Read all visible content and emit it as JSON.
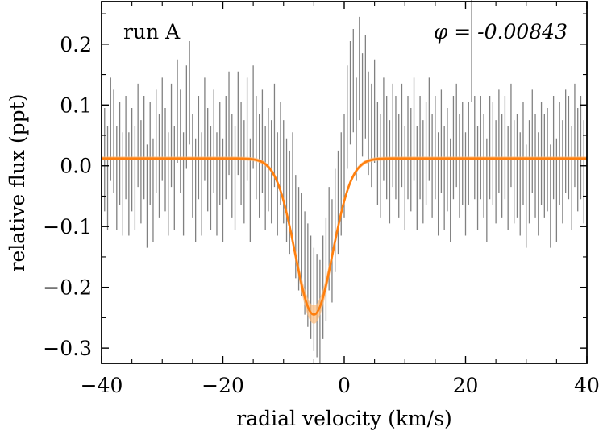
{
  "chart_data": {
    "type": "line",
    "title": "",
    "xlabel": "radial velocity (km/s)",
    "ylabel": "relative flux (ppt)",
    "xlim": [
      -40,
      40
    ],
    "ylim": [
      -0.325,
      0.27
    ],
    "x_ticks": [
      -40,
      -20,
      0,
      20,
      40
    ],
    "x_tick_labels": [
      "−40",
      "−20",
      "0",
      "20",
      "40"
    ],
    "y_ticks": [
      -0.3,
      -0.2,
      -0.1,
      0.0,
      0.1,
      0.2
    ],
    "y_tick_labels": [
      "−0.3",
      "−0.2",
      "−0.1",
      "0.0",
      "0.1",
      "0.2"
    ],
    "annotations": {
      "run_label": "run A",
      "phase_label": "φ = -0.00843"
    },
    "colors": {
      "data": "#808080",
      "model": "#ff7f0e",
      "band": "#ffbb78",
      "frame": "#000000"
    },
    "model": {
      "name": "gaussian fit",
      "baseline": 0.012,
      "amplitude": -0.257,
      "center": -5.0,
      "sigma": 3.1
    },
    "series": [
      {
        "name": "observed residual flux",
        "x": [
          -40,
          -39.5,
          -39,
          -38.5,
          -38,
          -37.5,
          -37,
          -36.5,
          -36,
          -35.5,
          -35,
          -34.5,
          -34,
          -33.5,
          -33,
          -32.5,
          -32,
          -31.5,
          -31,
          -30.5,
          -30,
          -29.5,
          -29,
          -28.5,
          -28,
          -27.5,
          -27,
          -26.5,
          -26,
          -25.5,
          -25,
          -24.5,
          -24,
          -23.5,
          -23,
          -22.5,
          -22,
          -21.5,
          -21,
          -20.5,
          -20,
          -19.5,
          -19,
          -18.5,
          -18,
          -17.5,
          -17,
          -16.5,
          -16,
          -15.5,
          -15,
          -14.5,
          -14,
          -13.5,
          -13,
          -12.5,
          -12,
          -11.5,
          -11,
          -10.5,
          -10,
          -9.5,
          -9,
          -8.5,
          -8,
          -7.5,
          -7,
          -6.5,
          -6,
          -5.5,
          -5,
          -4.5,
          -4,
          -3.5,
          -3,
          -2.5,
          -2,
          -1.5,
          -1,
          -0.5,
          0,
          0.5,
          1,
          1.5,
          2,
          2.5,
          3,
          3.5,
          4,
          4.5,
          5,
          5.5,
          6,
          6.5,
          7,
          7.5,
          8,
          8.5,
          9,
          9.5,
          10,
          10.5,
          11,
          11.5,
          12,
          12.5,
          13,
          13.5,
          14,
          14.5,
          15,
          15.5,
          16,
          16.5,
          17,
          17.5,
          18,
          18.5,
          19,
          19.5,
          20,
          20.5,
          21,
          21.5,
          22,
          22.5,
          23,
          23.5,
          24,
          24.5,
          25,
          25.5,
          26,
          26.5,
          27,
          27.5,
          28,
          28.5,
          29,
          29.5,
          30,
          30.5,
          31,
          31.5,
          32,
          32.5,
          33,
          33.5,
          34,
          34.5,
          35,
          35.5,
          36,
          36.5,
          37,
          37.5,
          38,
          38.5,
          39,
          39.5
        ],
        "y": [
          0.03,
          0.01,
          -0.02,
          0.06,
          0.04,
          -0.02,
          0.02,
          -0.03,
          0.03,
          -0.03,
          0.01,
          -0.02,
          0.05,
          -0.01,
          0.03,
          -0.05,
          0.02,
          -0.04,
          0.04,
          0.0,
          0.06,
          0.01,
          -0.03,
          0.05,
          -0.02,
          0.09,
          0.04,
          -0.03,
          0.08,
          0.12,
          0.0,
          -0.04,
          0.03,
          -0.03,
          0.06,
          0.01,
          -0.02,
          0.04,
          -0.03,
          0.02,
          -0.04,
          0.03,
          0.07,
          0.0,
          -0.02,
          0.07,
          0.02,
          -0.01,
          0.06,
          -0.04,
          0.08,
          0.03,
          0.0,
          0.04,
          -0.02,
          0.01,
          -0.01,
          0.05,
          -0.03,
          0.02,
          -0.01,
          -0.04,
          -0.06,
          -0.03,
          -0.1,
          -0.12,
          -0.13,
          -0.16,
          -0.18,
          -0.2,
          -0.22,
          -0.23,
          -0.24,
          -0.2,
          -0.17,
          -0.12,
          -0.14,
          -0.09,
          -0.06,
          -0.03,
          0.0,
          0.08,
          0.12,
          0.14,
          0.06,
          0.16,
          0.1,
          0.13,
          0.07,
          0.05,
          0.09,
          0.02,
          0.0,
          0.06,
          0.03,
          -0.01,
          0.05,
          0.03,
          0.0,
          0.05,
          -0.02,
          0.03,
          0.01,
          0.06,
          -0.02,
          0.03,
          -0.01,
          0.02,
          0.06,
          0.0,
          0.03,
          -0.03,
          0.04,
          -0.02,
          0.01,
          -0.04,
          0.03,
          0.05,
          0.0,
          0.02,
          -0.03,
          0.02,
          0.19,
          0.03,
          -0.02,
          0.03,
          0.0,
          -0.04,
          0.03,
          0.02,
          -0.01,
          0.04,
          0.0,
          0.03,
          -0.02,
          0.05,
          -0.01,
          0.0,
          -0.03,
          0.02,
          -0.05,
          -0.01,
          0.04,
          0.0,
          -0.03,
          0.02,
          0.0,
          0.01,
          -0.05,
          0.03,
          -0.04,
          0.02,
          -0.01,
          0.04,
          0.03,
          -0.02,
          0.05,
          0.01,
          0.03,
          -0.01
        ],
        "yerr": 0.085
      }
    ]
  }
}
